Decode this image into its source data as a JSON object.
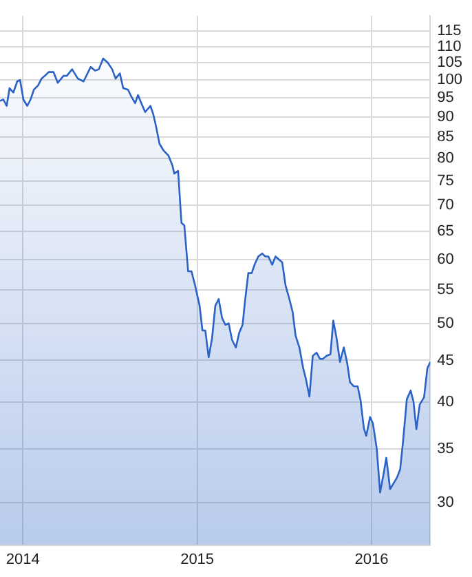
{
  "chart_data": {
    "type": "area",
    "x": [
      "2013-11-14",
      "2013-11-21",
      "2013-11-28",
      "2013-12-04",
      "2013-12-12",
      "2013-12-20",
      "2013-12-26",
      "2014-01-02",
      "2014-01-10",
      "2014-01-17",
      "2014-01-24",
      "2014-02-02",
      "2014-02-09",
      "2014-02-16",
      "2014-02-24",
      "2014-03-06",
      "2014-03-15",
      "2014-03-27",
      "2014-04-03",
      "2014-04-14",
      "2014-04-26",
      "2014-05-08",
      "2014-05-23",
      "2014-06-01",
      "2014-06-09",
      "2014-06-18",
      "2014-06-28",
      "2014-07-07",
      "2014-07-14",
      "2014-07-23",
      "2014-07-30",
      "2014-08-09",
      "2014-08-16",
      "2014-08-24",
      "2014-08-30",
      "2014-09-06",
      "2014-09-14",
      "2014-09-25",
      "2014-10-01",
      "2014-10-07",
      "2014-10-14",
      "2014-10-22",
      "2014-11-02",
      "2014-11-10",
      "2014-11-14",
      "2014-11-22",
      "2014-11-29",
      "2014-12-05",
      "2014-12-13",
      "2014-12-20",
      "2014-12-27",
      "2015-01-06",
      "2015-01-12",
      "2015-01-18",
      "2015-01-25",
      "2015-02-01",
      "2015-02-08",
      "2015-02-15",
      "2015-02-22",
      "2015-03-01",
      "2015-03-08",
      "2015-03-15",
      "2015-03-23",
      "2015-03-30",
      "2015-04-06",
      "2015-04-11",
      "2015-04-18",
      "2015-04-25",
      "2015-05-02",
      "2015-05-09",
      "2015-05-17",
      "2015-05-24",
      "2015-05-30",
      "2015-06-07",
      "2015-06-14",
      "2015-06-21",
      "2015-06-28",
      "2015-07-05",
      "2015-07-13",
      "2015-07-20",
      "2015-07-26",
      "2015-08-03",
      "2015-08-11",
      "2015-08-17",
      "2015-08-24",
      "2015-08-31",
      "2015-09-08",
      "2015-09-15",
      "2015-09-21",
      "2015-09-29",
      "2015-10-07",
      "2015-10-13",
      "2015-10-20",
      "2015-10-27",
      "2015-11-04",
      "2015-11-11",
      "2015-11-17",
      "2015-11-25",
      "2015-12-03",
      "2015-12-09",
      "2015-12-16",
      "2015-12-21",
      "2015-12-29",
      "2016-01-04",
      "2016-01-12",
      "2016-01-19",
      "2016-01-26",
      "2016-02-01",
      "2016-02-09",
      "2016-02-16",
      "2016-02-23",
      "2016-03-01",
      "2016-03-07",
      "2016-03-15",
      "2016-03-23",
      "2016-03-29",
      "2016-04-04",
      "2016-04-11",
      "2016-04-20",
      "2016-04-27",
      "2016-05-03"
    ],
    "series": [
      {
        "color": "#2a62c5",
        "values": [
          94.2,
          94.6,
          92.9,
          97.7,
          96.5,
          99.6,
          100,
          94.6,
          92.9,
          94.6,
          97.3,
          98.5,
          100.4,
          101.2,
          102.3,
          102.3,
          99.2,
          101.2,
          101.2,
          103.1,
          100.4,
          99.6,
          103.8,
          102.7,
          103.1,
          106.3,
          105,
          103.1,
          100.4,
          101.9,
          97.7,
          97.3,
          95.4,
          93.6,
          95.8,
          93.6,
          91.3,
          92.9,
          90.7,
          87.5,
          83.4,
          81.9,
          80.6,
          78.4,
          76.6,
          77.2,
          66.6,
          66.1,
          58.0,
          58.0,
          55.9,
          52.6,
          49.0,
          49.0,
          45.4,
          47.9,
          52.6,
          53.6,
          50.8,
          49.8,
          50,
          47.7,
          46.7,
          48.7,
          49.8,
          53.2,
          57.7,
          57.7,
          59.3,
          60.5,
          61.0,
          60.5,
          60.5,
          59.1,
          60.5,
          60,
          59.5,
          55.7,
          53.6,
          51.6,
          48.3,
          46.7,
          44.0,
          42.6,
          40.6,
          45.6,
          46.0,
          45.2,
          45.2,
          45.6,
          45.8,
          50.4,
          47.9,
          44.8,
          46.7,
          44.7,
          42.3,
          41.8,
          41.8,
          40.2,
          37.1,
          36.3,
          38.3,
          37.6,
          35,
          30.9,
          32.5,
          34.1,
          31.2,
          31.7,
          32.2,
          33.0,
          35.7,
          40.3,
          41.3,
          40,
          37.0,
          39.7,
          40.5,
          44.0,
          44.8
        ]
      }
    ],
    "xlim": [
      "2013-11-14",
      "2016-05-03"
    ],
    "xticks": [
      {
        "value": "2014-01-01",
        "label": "2014"
      },
      {
        "value": "2015-01-01",
        "label": "2015"
      },
      {
        "value": "2016-01-01",
        "label": "2016"
      }
    ],
    "ylim": [
      26.6,
      120
    ],
    "yticks": [
      30,
      35,
      40,
      45,
      50,
      55,
      60,
      65,
      70,
      75,
      80,
      85,
      90,
      95,
      100,
      105,
      110,
      115
    ],
    "log": true,
    "grid": true,
    "legend": false
  }
}
